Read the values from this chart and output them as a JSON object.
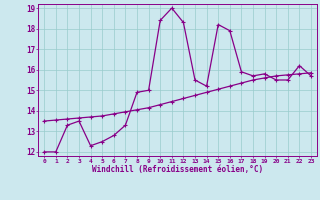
{
  "xlabel": "Windchill (Refroidissement éolien,°C)",
  "background_color": "#cce8ee",
  "line_color": "#880088",
  "grid_color": "#99cccc",
  "spine_color": "#880088",
  "xlim": [
    -0.5,
    23.5
  ],
  "ylim": [
    11.8,
    19.2
  ],
  "xticks": [
    0,
    1,
    2,
    3,
    4,
    5,
    6,
    7,
    8,
    9,
    10,
    11,
    12,
    13,
    14,
    15,
    16,
    17,
    18,
    19,
    20,
    21,
    22,
    23
  ],
  "yticks": [
    12,
    13,
    14,
    15,
    16,
    17,
    18,
    19
  ],
  "x_main": [
    0,
    1,
    2,
    3,
    4,
    5,
    6,
    7,
    8,
    9,
    10,
    11,
    12,
    13,
    14,
    15,
    16,
    17,
    18,
    19,
    20,
    21,
    22,
    23
  ],
  "y_main": [
    12.0,
    12.0,
    13.3,
    13.5,
    12.3,
    12.5,
    12.8,
    13.3,
    14.9,
    15.0,
    18.4,
    19.0,
    18.3,
    15.5,
    15.2,
    18.2,
    17.9,
    15.9,
    15.7,
    15.8,
    15.5,
    15.5,
    16.2,
    15.7
  ],
  "x_trend": [
    0,
    1,
    2,
    3,
    4,
    5,
    6,
    7,
    8,
    9,
    10,
    11,
    12,
    13,
    14,
    15,
    16,
    17,
    18,
    19,
    20,
    21,
    22,
    23
  ],
  "y_trend": [
    13.5,
    13.55,
    13.6,
    13.65,
    13.7,
    13.75,
    13.85,
    13.95,
    14.05,
    14.15,
    14.3,
    14.45,
    14.6,
    14.75,
    14.9,
    15.05,
    15.2,
    15.35,
    15.5,
    15.6,
    15.7,
    15.75,
    15.8,
    15.85
  ]
}
